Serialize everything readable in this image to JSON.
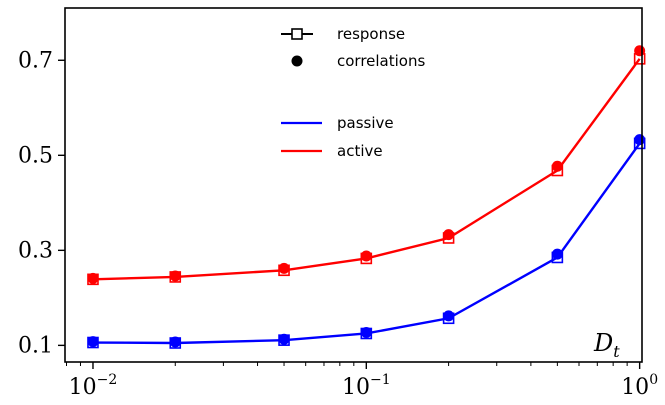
{
  "chart_data": {
    "type": "line",
    "title": "",
    "xlabel": "D_t",
    "xlabel_main": "D",
    "xlabel_sub": "t",
    "ylabel": "",
    "xscale": "log",
    "xlim": [
      0.0079,
      1.02
    ],
    "ylim": [
      0.065,
      0.81
    ],
    "y_ticks": [
      0.1,
      0.3,
      0.5,
      0.7
    ],
    "y_tick_labels": [
      "0.1",
      "0.3",
      "0.5",
      "0.7"
    ],
    "x_ticks": [
      {
        "value": 0.01,
        "base": "10",
        "exp": "−2"
      },
      {
        "value": 0.1,
        "base": "10",
        "exp": "−1"
      },
      {
        "value": 1,
        "base": "10",
        "exp": "0"
      }
    ],
    "x": [
      0.01,
      0.02,
      0.05,
      0.1,
      0.2,
      0.5,
      1.0
    ],
    "series": [
      {
        "name": "passive",
        "color": "#0000ff",
        "response": [
          0.106,
          0.105,
          0.111,
          0.125,
          0.157,
          0.285,
          0.525
        ],
        "correlations": [
          0.108,
          0.107,
          0.113,
          0.127,
          0.162,
          0.292,
          0.533
        ]
      },
      {
        "name": "active",
        "color": "#ff0000",
        "response": [
          0.239,
          0.244,
          0.258,
          0.283,
          0.326,
          0.468,
          0.703
        ],
        "correlations": [
          0.241,
          0.246,
          0.262,
          0.288,
          0.333,
          0.477,
          0.72
        ]
      }
    ],
    "legend": {
      "position": "top-center",
      "marker_entries": [
        {
          "label": "response",
          "icon": "line-open-square"
        },
        {
          "label": "correlations",
          "icon": "filled-circle"
        }
      ],
      "color_entries": [
        {
          "label": "passive",
          "color": "#0000ff"
        },
        {
          "label": "active",
          "color": "#ff0000"
        }
      ]
    }
  }
}
